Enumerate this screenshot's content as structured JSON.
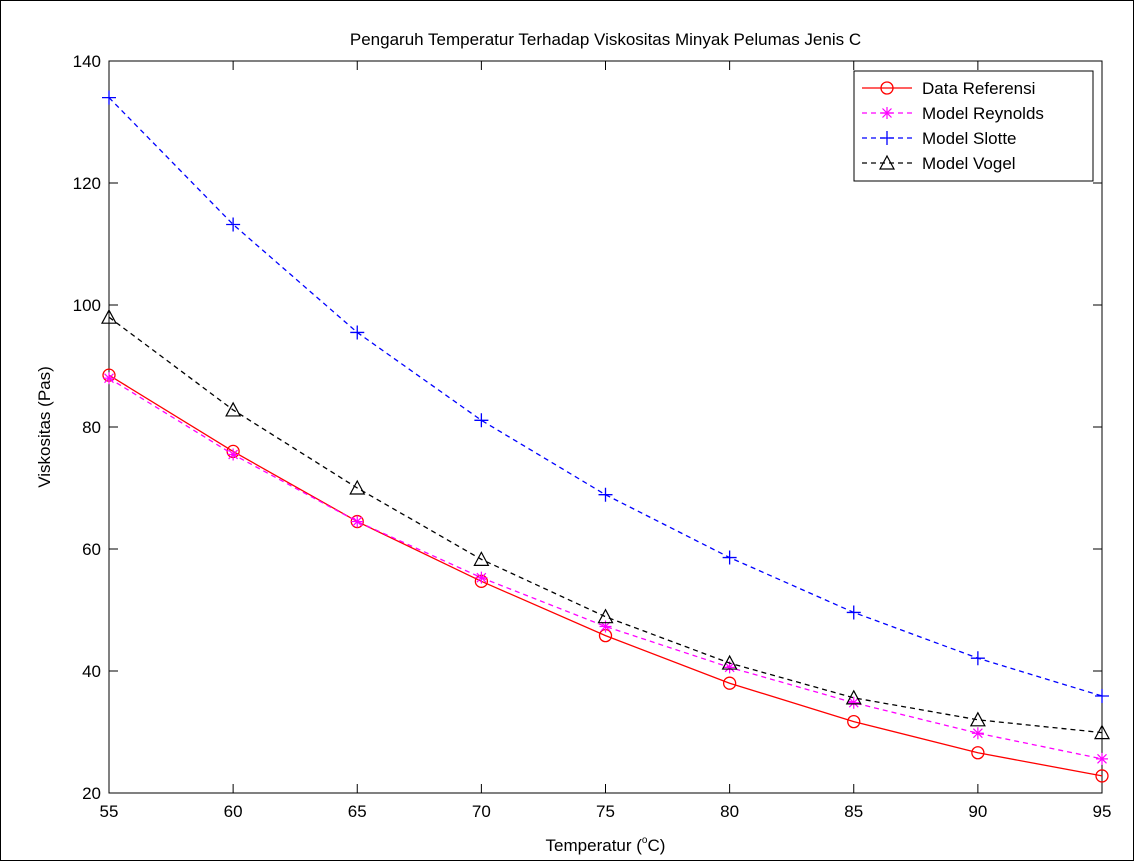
{
  "chart_data": {
    "type": "line",
    "title": "Pengaruh Temperatur Terhadap Viskositas Minyak Pelumas Jenis C",
    "xlabel": "Temperatur (",
    "xlabel_sup": "o",
    "xlabel_tail": "C)",
    "ylabel": "Viskositas (Pas)",
    "xlim": [
      55,
      95
    ],
    "ylim": [
      20,
      140
    ],
    "xticks": [
      55,
      60,
      65,
      70,
      75,
      80,
      85,
      90,
      95
    ],
    "yticks": [
      20,
      40,
      60,
      80,
      100,
      120,
      140
    ],
    "grid": false,
    "legend_position": "top-right",
    "x": [
      55,
      60,
      65,
      70,
      75,
      80,
      85,
      90,
      95
    ],
    "series": [
      {
        "name": "Data Referensi",
        "color": "#ff0000",
        "dash": "solid",
        "marker": "circle",
        "values": [
          88.5,
          76.0,
          64.5,
          54.7,
          45.8,
          38.0,
          31.7,
          26.6,
          22.8
        ]
      },
      {
        "name": "Model Reynolds",
        "color": "#ff00ff",
        "dash": "dashed",
        "marker": "star",
        "values": [
          88.0,
          75.5,
          64.5,
          55.3,
          47.3,
          40.6,
          34.8,
          29.8,
          25.6
        ]
      },
      {
        "name": "Model Slotte",
        "color": "#0000ff",
        "dash": "dashed",
        "marker": "plus",
        "values": [
          134.0,
          113.2,
          95.5,
          81.1,
          68.9,
          58.6,
          49.6,
          42.1,
          35.9
        ]
      },
      {
        "name": "Model Vogel",
        "color": "#000000",
        "dash": "dashed",
        "marker": "triangle",
        "values": [
          98.0,
          82.8,
          70.0,
          58.3,
          48.9,
          41.3,
          35.6,
          32.0,
          29.9
        ]
      }
    ]
  }
}
